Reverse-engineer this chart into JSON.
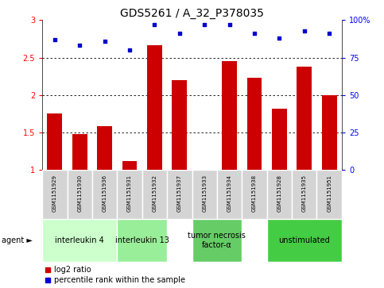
{
  "title": "GDS5261 / A_32_P378035",
  "samples": [
    "GSM1151929",
    "GSM1151930",
    "GSM1151936",
    "GSM1151931",
    "GSM1151932",
    "GSM1151937",
    "GSM1151933",
    "GSM1151934",
    "GSM1151938",
    "GSM1151928",
    "GSM1151935",
    "GSM1151951"
  ],
  "log2_ratio": [
    1.75,
    1.48,
    1.58,
    1.12,
    2.67,
    2.2,
    1.0,
    2.45,
    2.23,
    1.82,
    2.38,
    2.0
  ],
  "percentile_rank": [
    87,
    83,
    86,
    80,
    97,
    91,
    97,
    97,
    91,
    88,
    93,
    91
  ],
  "bar_color": "#cc0000",
  "dot_color": "#0000cc",
  "ylim_left": [
    1.0,
    3.0
  ],
  "ylim_right": [
    0,
    100
  ],
  "yticks_left": [
    1.0,
    1.5,
    2.0,
    2.5,
    3.0
  ],
  "yticks_right": [
    0,
    25,
    50,
    75,
    100
  ],
  "ytick_labels_left": [
    "1",
    "1.5",
    "2",
    "2.5",
    "3"
  ],
  "ytick_labels_right": [
    "0",
    "25",
    "50",
    "75",
    "100%"
  ],
  "group_spans": [
    {
      "start": 0,
      "end": 2,
      "label": "interleukin 4",
      "color": "#ccffcc"
    },
    {
      "start": 3,
      "end": 4,
      "label": "interleukin 13",
      "color": "#99ee99"
    },
    {
      "start": 6,
      "end": 7,
      "label": "tumor necrosis\nfactor-α",
      "color": "#66cc66"
    },
    {
      "start": 9,
      "end": 11,
      "label": "unstimulated",
      "color": "#44cc44"
    }
  ],
  "cell_bg": "#d4d4d4",
  "cell_border": "#ffffff",
  "agent_label": "agent",
  "legend_bar_label": "log2 ratio",
  "legend_dot_label": "percentile rank within the sample",
  "title_fontsize": 10,
  "tick_fontsize": 7,
  "sample_fontsize": 5,
  "group_fontsize": 7
}
